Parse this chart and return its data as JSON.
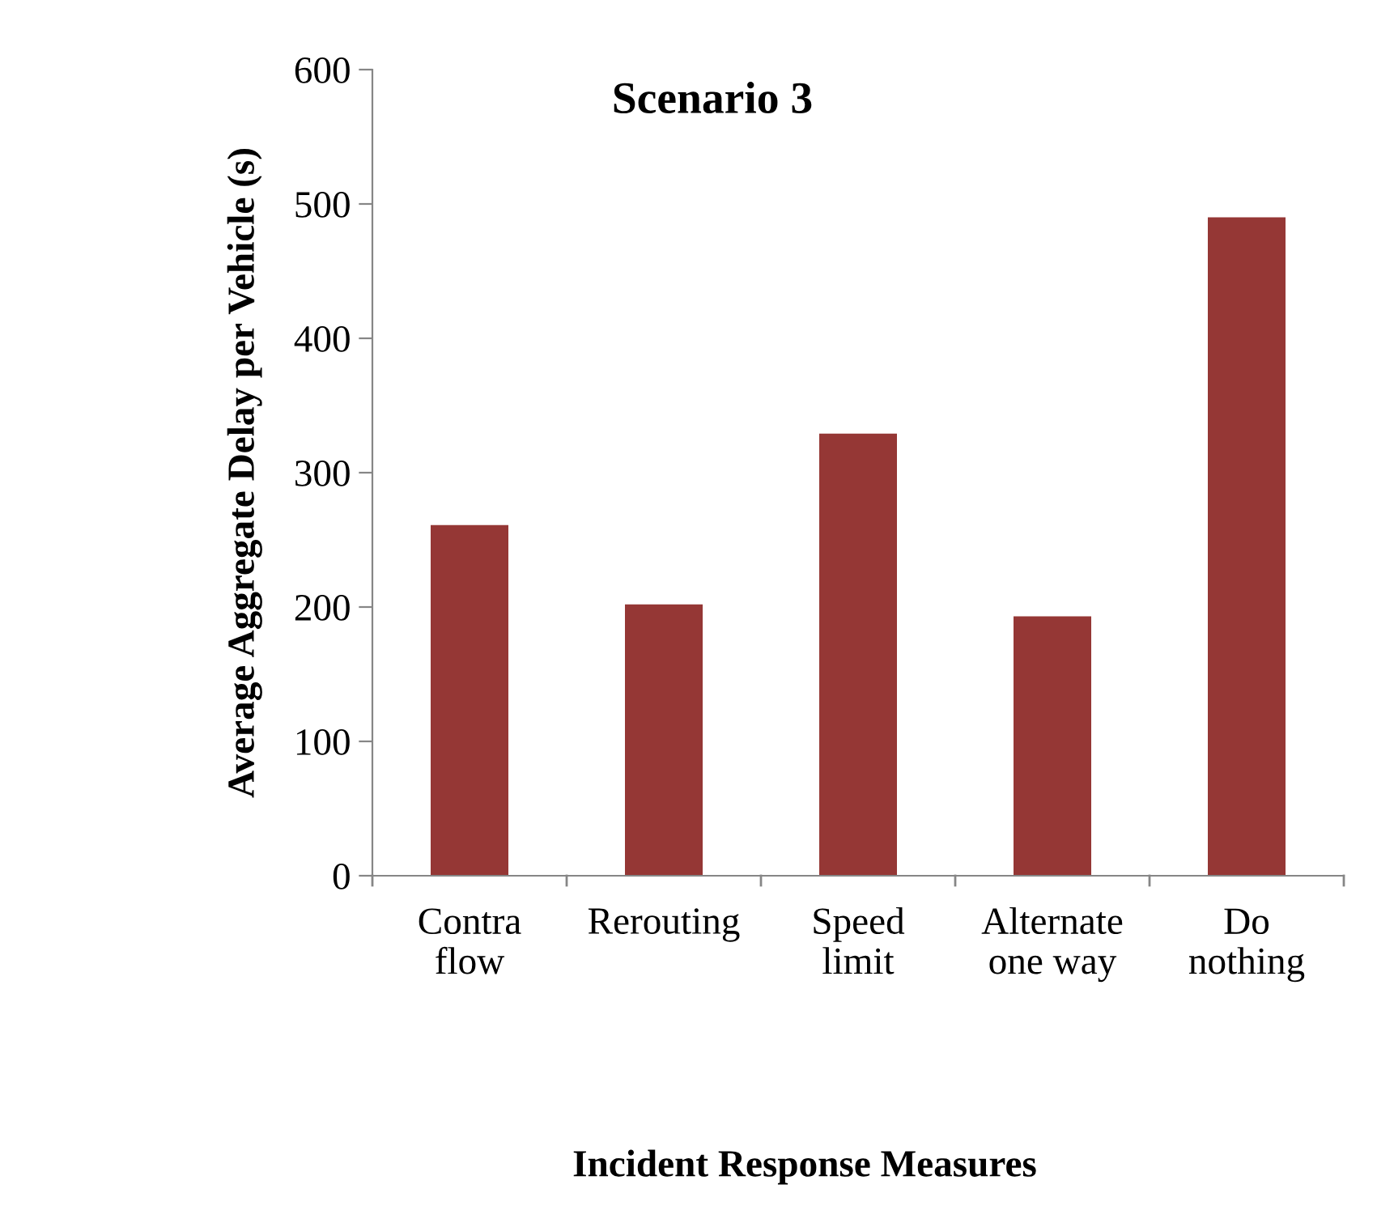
{
  "chart_data": {
    "type": "bar",
    "title": "Scenario 3",
    "xlabel": "Incident Response Measures",
    "ylabel": "Average Aggregate Delay per Vehicle (s)",
    "categories": [
      "Contra\nflow",
      "Rerouting",
      "Speed\nlimit",
      "Alternate\none way",
      "Do\nnothing"
    ],
    "values": [
      261,
      202,
      329,
      193,
      490
    ],
    "color": "#953735",
    "ylim": [
      0,
      600
    ],
    "yticks": [
      0,
      100,
      200,
      300,
      400,
      500,
      600
    ],
    "grid": false,
    "legend": false
  }
}
